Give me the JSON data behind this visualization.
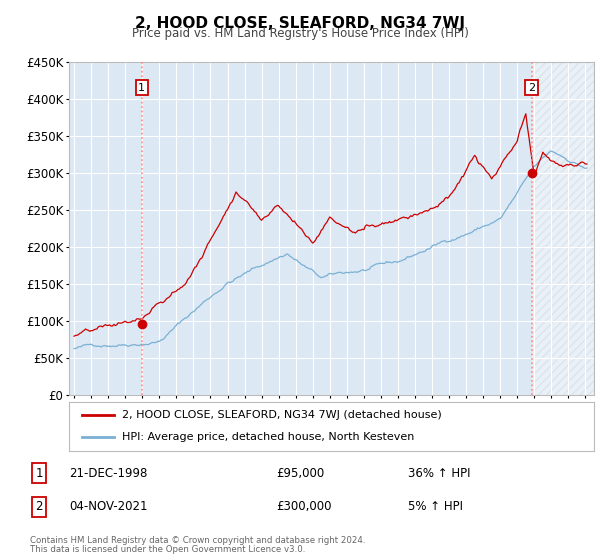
{
  "title": "2, HOOD CLOSE, SLEAFORD, NG34 7WJ",
  "subtitle": "Price paid vs. HM Land Registry's House Price Index (HPI)",
  "legend_line1": "2, HOOD CLOSE, SLEAFORD, NG34 7WJ (detached house)",
  "legend_line2": "HPI: Average price, detached house, North Kesteven",
  "footnote1": "Contains HM Land Registry data © Crown copyright and database right 2024.",
  "footnote2": "This data is licensed under the Open Government Licence v3.0.",
  "annotation1_label": "1",
  "annotation1_date": "21-DEC-1998",
  "annotation1_price": "£95,000",
  "annotation1_hpi": "36% ↑ HPI",
  "annotation2_label": "2",
  "annotation2_date": "04-NOV-2021",
  "annotation2_price": "£300,000",
  "annotation2_hpi": "5% ↑ HPI",
  "sale1_x": 1998.97,
  "sale1_y": 95000,
  "sale2_x": 2021.84,
  "sale2_y": 300000,
  "vline1_x": 1998.97,
  "vline2_x": 2021.84,
  "red_color": "#cc0000",
  "blue_color": "#7bafd4",
  "bg_color": "#dce9f5",
  "hatch_bg": "#e8eef5",
  "ylim": [
    0,
    450000
  ],
  "xlim_start": 1994.7,
  "xlim_end": 2025.5,
  "yticks": [
    0,
    50000,
    100000,
    150000,
    200000,
    250000,
    300000,
    350000,
    400000,
    450000
  ],
  "xticks": [
    1995,
    1996,
    1997,
    1998,
    1999,
    2000,
    2001,
    2002,
    2003,
    2004,
    2005,
    2006,
    2007,
    2008,
    2009,
    2010,
    2011,
    2012,
    2013,
    2014,
    2015,
    2016,
    2017,
    2018,
    2019,
    2020,
    2021,
    2022,
    2023,
    2024,
    2025
  ]
}
